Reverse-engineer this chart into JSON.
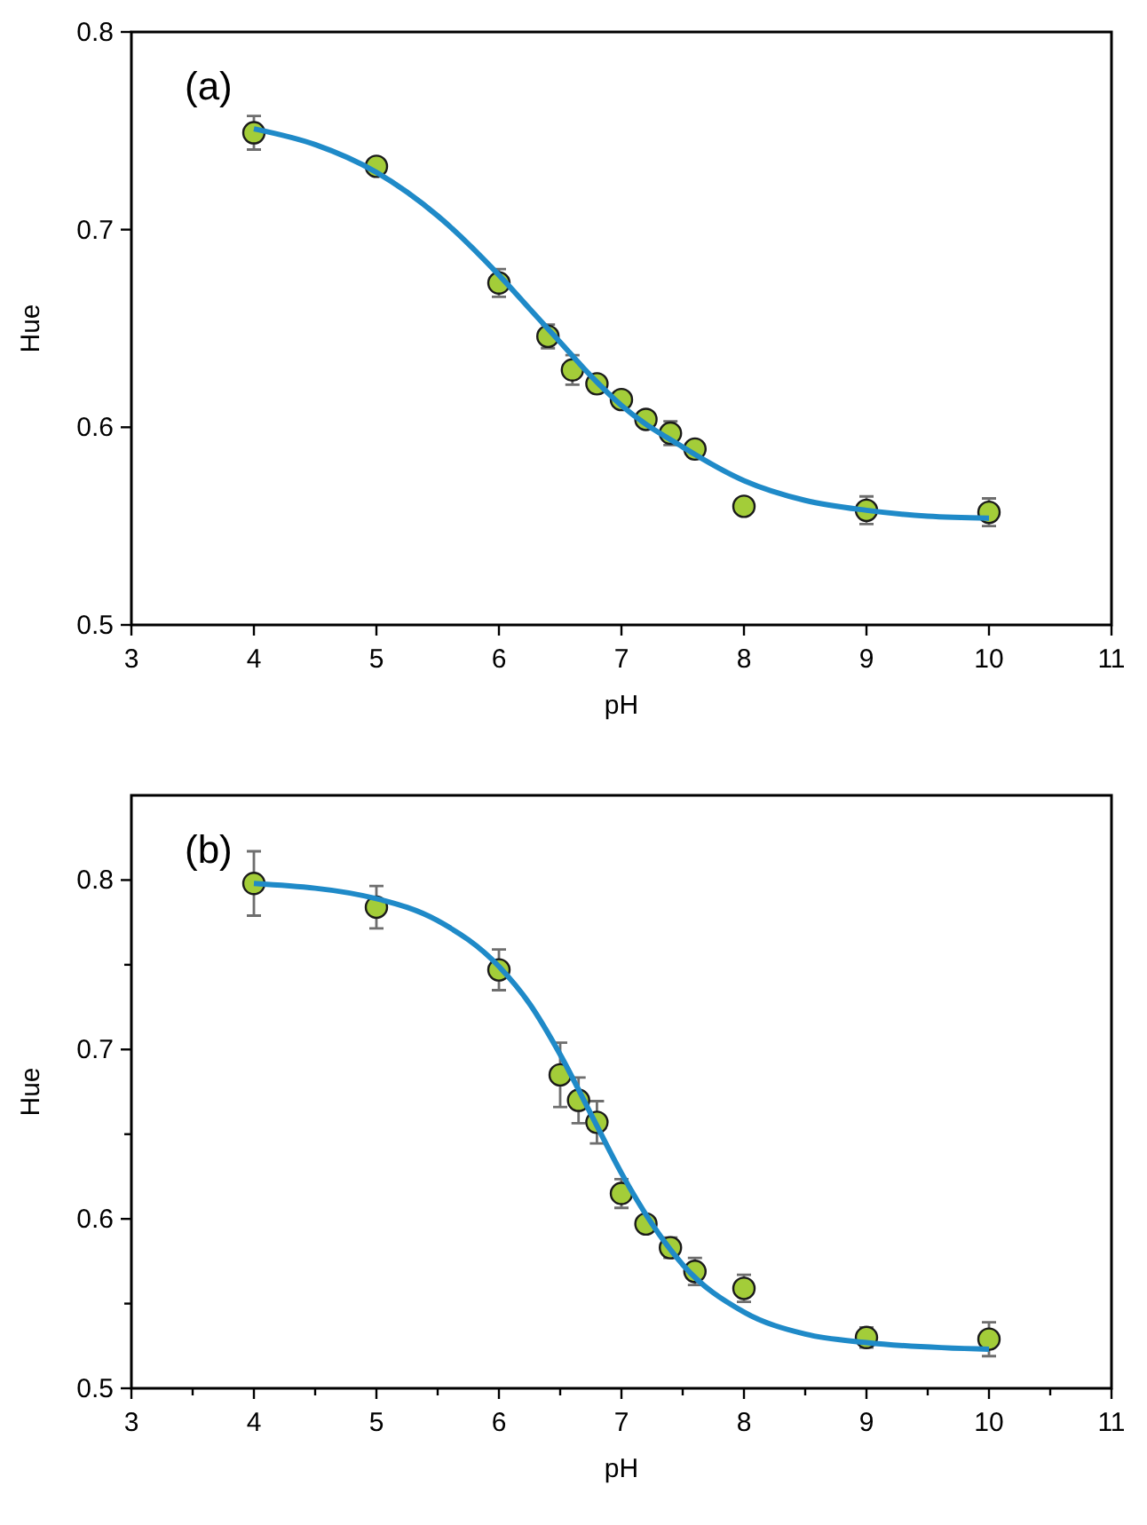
{
  "chart_data": [
    {
      "type": "scatter",
      "annotations": [
        "(a)"
      ],
      "xlabel": "pH",
      "ylabel": "Hue",
      "xlim": [
        3,
        11
      ],
      "xticks": [
        3,
        4,
        5,
        6,
        7,
        8,
        9,
        10,
        11
      ],
      "ylim": [
        0.5,
        0.8
      ],
      "yticks": [
        0.5,
        0.6,
        0.7,
        0.8
      ],
      "grid": false,
      "marker": "circle",
      "series": [
        {
          "type": "scatter",
          "color": "#a3cd39",
          "x": [
            4,
            5,
            6,
            6.4,
            6.6,
            6.8,
            7,
            7.2,
            7.4,
            7.6,
            8,
            9,
            10
          ],
          "values": [
            0.749,
            0.732,
            0.673,
            0.646,
            0.629,
            0.622,
            0.614,
            0.604,
            0.597,
            0.589,
            0.56,
            0.558,
            0.557
          ],
          "errors": [
            0.0085,
            null,
            0.007,
            0.006,
            0.0075,
            null,
            null,
            null,
            0.006,
            null,
            null,
            0.007,
            0.007
          ]
        },
        {
          "type": "line",
          "marker": "none",
          "color": "#1f8ac8",
          "x": [
            4,
            4.5,
            5,
            5.5,
            6,
            6.25,
            6.5,
            6.75,
            7,
            7.5,
            8,
            8.5,
            9,
            9.5,
            10
          ],
          "values": [
            0.751,
            0.743,
            0.729,
            0.707,
            0.677,
            0.66,
            0.643,
            0.626,
            0.611,
            0.59,
            0.573,
            0.563,
            0.558,
            0.555,
            0.554
          ]
        }
      ]
    },
    {
      "type": "scatter",
      "annotations": [
        "(b)"
      ],
      "xlabel": "pH",
      "ylabel": "Hue",
      "xlim": [
        3,
        11
      ],
      "xticks": [
        3,
        {
          "value": 3.5,
          "label": null
        },
        4,
        {
          "value": 4.5,
          "label": null
        },
        5,
        {
          "value": 5.5,
          "label": null
        },
        6,
        {
          "value": 6.5,
          "label": null
        },
        7,
        {
          "value": 7.5,
          "label": null
        },
        8,
        {
          "value": 8.5,
          "label": null
        },
        9,
        {
          "value": 9.5,
          "label": null
        },
        10,
        {
          "value": 10.5,
          "label": null
        },
        11
      ],
      "ylim": [
        0.5,
        0.85
      ],
      "yticks": [
        0.5,
        {
          "value": 0.55,
          "label": null
        },
        0.6,
        {
          "value": 0.65,
          "label": null
        },
        0.7,
        {
          "value": 0.75,
          "label": null
        },
        0.8
      ],
      "grid": false,
      "marker": "circle",
      "series": [
        {
          "type": "scatter",
          "color": "#a3cd39",
          "x": [
            4,
            5,
            6,
            6.5,
            6.65,
            6.8,
            7,
            7.2,
            7.4,
            7.6,
            8,
            9,
            10
          ],
          "values": [
            0.798,
            0.784,
            0.747,
            0.685,
            0.67,
            0.657,
            0.615,
            0.597,
            0.583,
            0.569,
            0.559,
            0.53,
            0.529
          ],
          "errors": [
            0.019,
            0.0125,
            0.012,
            0.019,
            0.0135,
            0.0125,
            0.0085,
            null,
            0.006,
            0.008,
            0.008,
            0.006,
            0.01
          ]
        },
        {
          "type": "line",
          "marker": "none",
          "color": "#1f8ac8",
          "x": [
            4,
            5,
            5.5,
            6,
            6.25,
            6.5,
            6.75,
            7,
            7.25,
            7.5,
            8,
            8.5,
            9,
            10
          ],
          "values": [
            0.798,
            0.789,
            0.776,
            0.749,
            0.727,
            0.697,
            0.662,
            0.627,
            0.597,
            0.573,
            0.545,
            0.532,
            0.527,
            0.523
          ]
        }
      ]
    }
  ]
}
